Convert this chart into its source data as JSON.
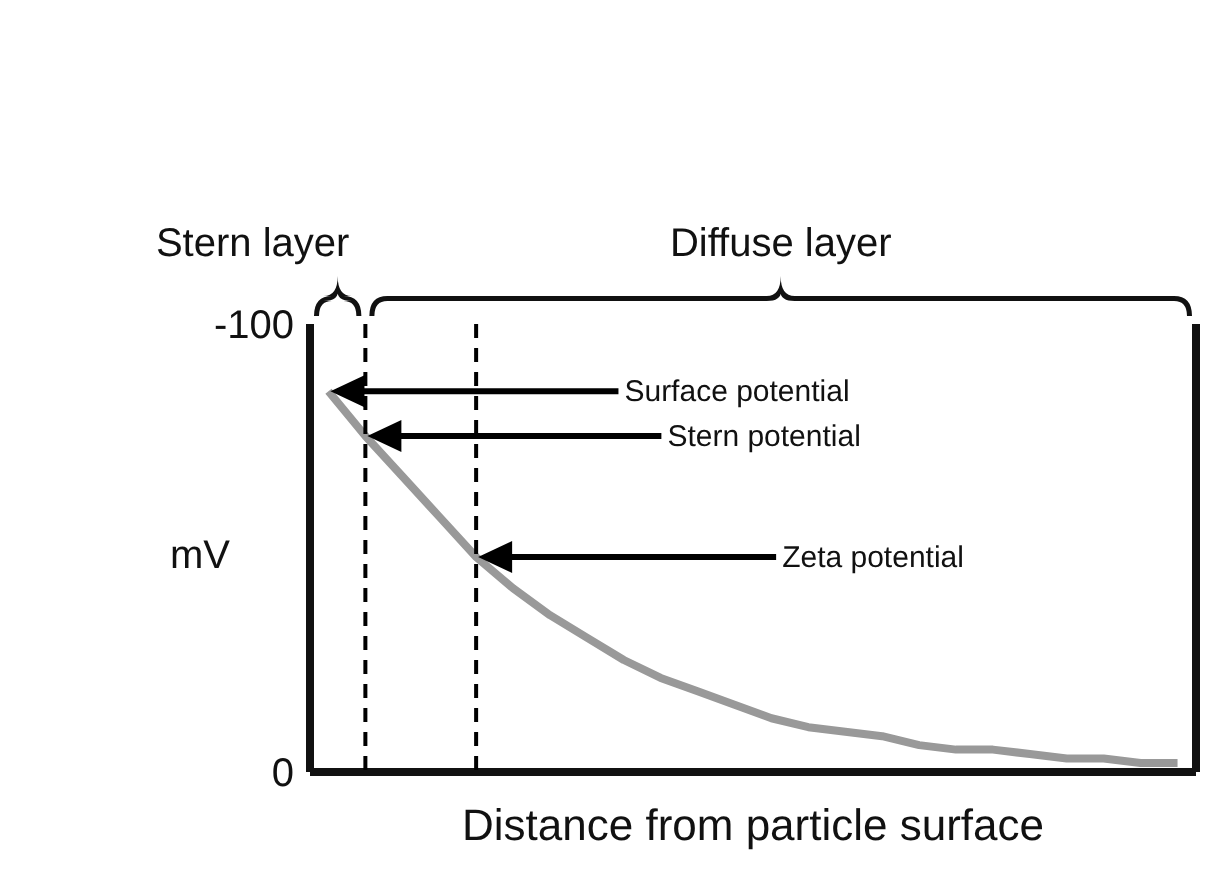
{
  "chart_data": {
    "type": "line",
    "xlabel": "Distance from particle surface",
    "ylabel": "mV",
    "categories": [
      null,
      null,
      null,
      null,
      null,
      null,
      null,
      null,
      null,
      null,
      null,
      null,
      null,
      null,
      null,
      null,
      null,
      null,
      null,
      null,
      null,
      null,
      null,
      null
    ],
    "series": [
      {
        "color": "#999999",
        "values": [
          -85,
          -75,
          -66,
          -57,
          -48,
          -41,
          -35,
          -30,
          -25,
          -21,
          -18,
          -15,
          -12,
          -10,
          -9,
          -8,
          -6,
          -5,
          -5,
          -4,
          -3,
          -3,
          -2,
          -2
        ]
      }
    ],
    "ylim": [
      0,
      -100
    ],
    "yticks": [
      -100,
      0
    ],
    "tick_labels": "y",
    "annotations": [
      "Stern layer",
      "Diffuse layer",
      "Surface potential",
      "Stern potential",
      "Zeta potential"
    ]
  }
}
